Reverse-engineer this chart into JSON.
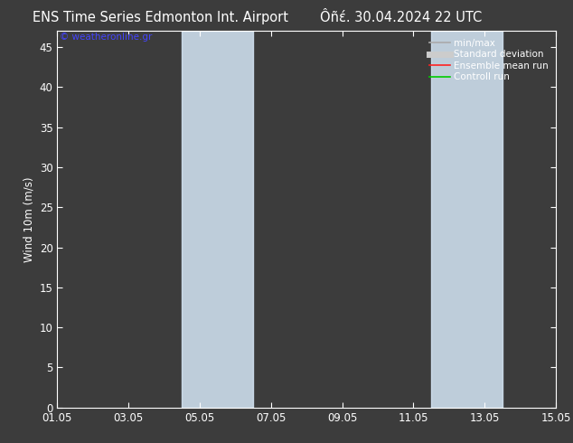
{
  "title_left": "ENS Time Series Edmonton Int. Airport",
  "title_right": "Ôñέ. 30.04.2024 22 UTC",
  "ylabel": "Wind 10m (m/s)",
  "watermark": "© weatheronline.gr",
  "xlim_min": 0,
  "xlim_max": 14,
  "ylim_min": 0,
  "ylim_max": 47,
  "yticks": [
    0,
    5,
    10,
    15,
    20,
    25,
    30,
    35,
    40,
    45
  ],
  "xtick_positions": [
    0,
    2,
    4,
    6,
    8,
    10,
    12,
    14
  ],
  "xtick_labels": [
    "01.05",
    "03.05",
    "05.05",
    "07.05",
    "09.05",
    "11.05",
    "13.05",
    "15.05"
  ],
  "shaded_bands": [
    {
      "xmin": 3.5,
      "xmax": 5.5
    },
    {
      "xmin": 10.5,
      "xmax": 12.5
    }
  ],
  "band_color": "#d6e8f7",
  "figure_bg": "#3c3c3c",
  "plot_bg": "#3c3c3c",
  "text_color": "#ffffff",
  "tick_color": "#ffffff",
  "spine_color": "#ffffff",
  "legend_items": [
    {
      "label": "min/max",
      "color": "#aaaaaa",
      "lw": 1.2
    },
    {
      "label": "Standard deviation",
      "color": "#cccccc",
      "lw": 5
    },
    {
      "label": "Ensemble mean run",
      "color": "#ff2222",
      "lw": 1.2
    },
    {
      "label": "Controll run",
      "color": "#00cc00",
      "lw": 1.2
    }
  ],
  "watermark_color": "#4444ff",
  "title_fontsize": 10.5,
  "tick_fontsize": 8.5,
  "ylabel_fontsize": 8.5,
  "legend_fontsize": 7.5
}
